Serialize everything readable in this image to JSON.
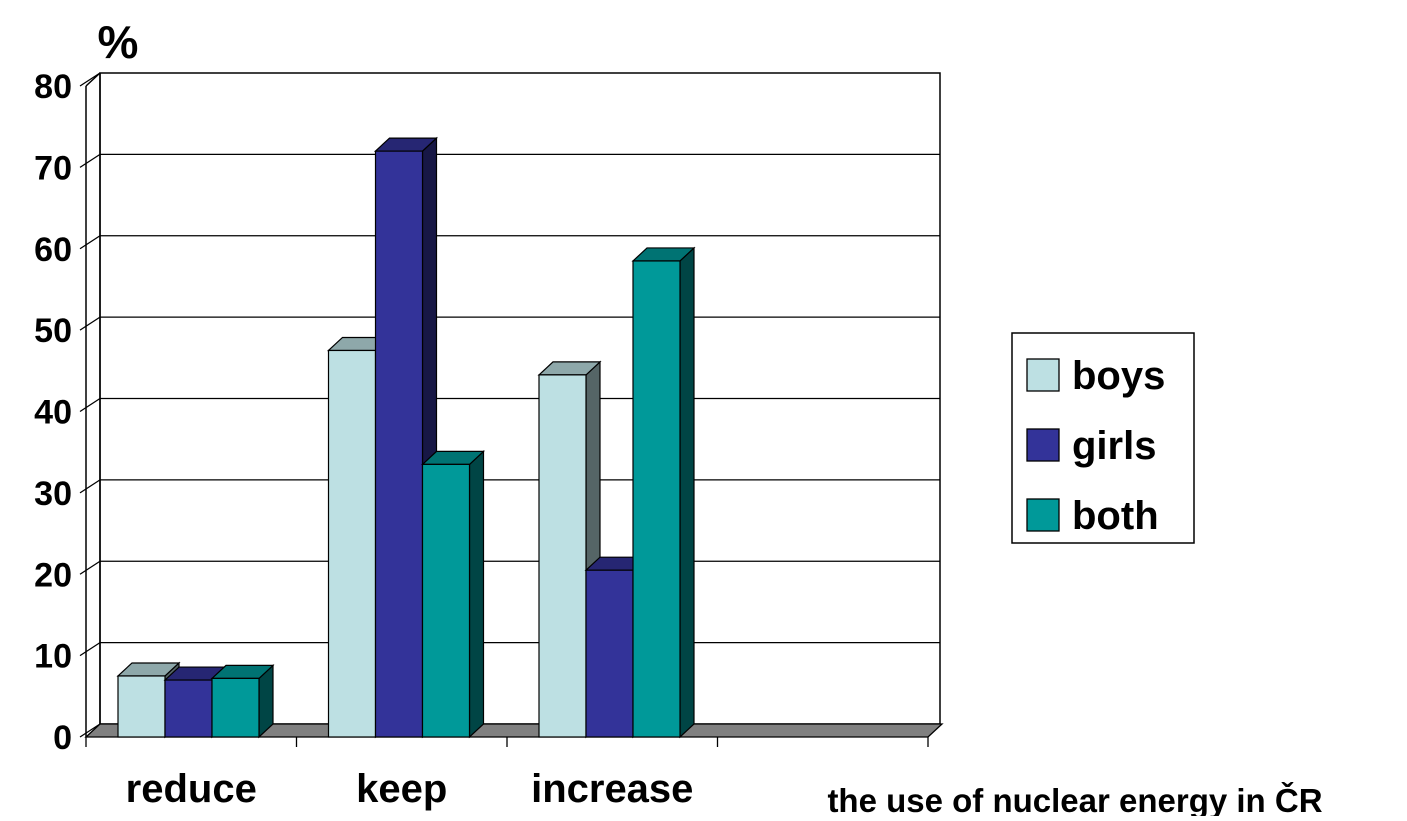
{
  "chart_data": {
    "type": "bar",
    "title": "",
    "ylabel": "%",
    "xlabel": "the use of nuclear energy in ČR",
    "categories": [
      "reduce",
      "keep",
      "increase"
    ],
    "ylim": [
      0,
      80
    ],
    "yticks": [
      "0",
      "10",
      "20",
      "30",
      "40",
      "50",
      "60",
      "70",
      "80"
    ],
    "grid": true,
    "legend_position": "right",
    "series": [
      {
        "name": "boys",
        "values": [
          7.5,
          47.5,
          44.5
        ],
        "color": "#bde0e3"
      },
      {
        "name": "girls",
        "values": [
          7,
          72,
          20.5
        ],
        "color": "#333399"
      },
      {
        "name": "both",
        "values": [
          7.2,
          33.5,
          58.5
        ],
        "color": "#009999"
      }
    ]
  }
}
